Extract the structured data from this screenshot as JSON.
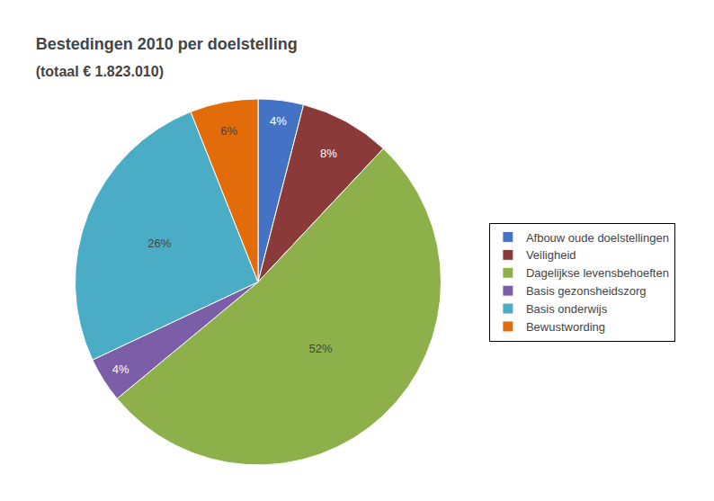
{
  "chart_data": {
    "type": "pie",
    "title": "Bestedingen 2010 per doelstelling",
    "subtitle": "(totaal € 1.823.010)",
    "categories": [
      "Afbouw oude doelstellingen",
      "Veiligheid",
      "Dagelijkse levensbehoeften",
      "Basis gezonsheidszorg",
      "Basis onderwijs",
      "Bewustwording"
    ],
    "values": [
      4,
      8,
      52,
      4,
      26,
      6
    ],
    "value_labels": [
      "4%",
      "8%",
      "52%",
      "4%",
      "26%",
      "6%"
    ],
    "colors": [
      "#4472C4",
      "#8B3A3A",
      "#8DB04A",
      "#7B5EA7",
      "#4BACC6",
      "#E36C0A"
    ],
    "data_labels": true,
    "legend": "right"
  }
}
